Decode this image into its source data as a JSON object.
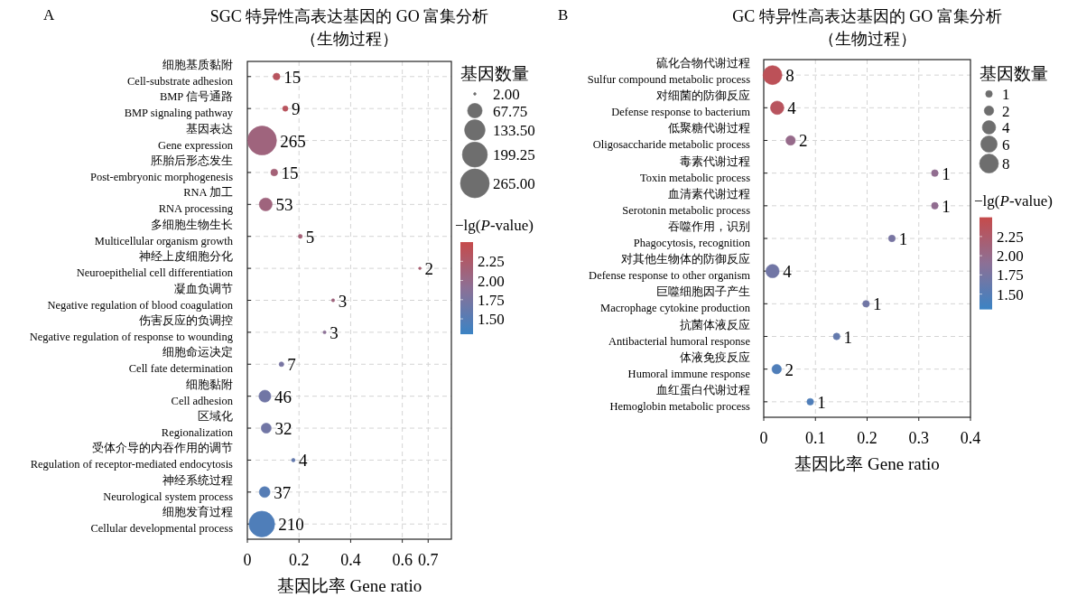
{
  "chart_data": [
    {
      "type": "bubble",
      "orientation": "horizontal",
      "title": "SGC 特异性高表达基因的 GO 富集分析",
      "subtitle": "（生物过程）",
      "annotations": [
        "A"
      ],
      "xlabel": "基因比率 Gene ratio",
      "legend_title": "基因数量",
      "clabel": "−lg($_{}$P-value)",
      "grid": true,
      "categories": [
        "细胞基质黏附\nCell-substrate adhesion",
        "BMP 信号通路\nBMP signaling pathway",
        "基因表达\nGene expression",
        "胚胎后形态发生\nPost-embryonic morphogenesis",
        "RNA 加工\nRNA processing",
        "多细胞生物生长\nMulticellular organism growth",
        "神经上皮细胞分化\nNeuroepithelial cell differentiation",
        "凝血负调节\nNegative regulation of blood coagulation",
        "伤害反应的负调控\nNegative regulation of response to wounding",
        "细胞命运决定\nCell fate determination",
        "细胞黏附\nCell adhesion",
        "区域化\nRegionalization",
        "受体介导的内吞作用的调节\nRegulation of receptor-mediated endocytosis",
        "神经系统过程\nNeurological system process",
        "细胞发育过程\nCellular developmental process"
      ],
      "values": [
        0.113,
        0.147,
        0.057,
        0.104,
        0.071,
        0.205,
        0.668,
        0.332,
        0.299,
        0.132,
        0.068,
        0.073,
        0.178,
        0.067,
        0.056
      ],
      "sizes": [
        15,
        9,
        265,
        15,
        53,
        5,
        2,
        3,
        3,
        7,
        46,
        32,
        4,
        37,
        210
      ],
      "cvalues": [
        2.35,
        2.35,
        2.1,
        2.15,
        2.1,
        2.15,
        2.2,
        2.1,
        1.9,
        1.75,
        1.7,
        1.7,
        1.6,
        1.5,
        1.45
      ],
      "value_labels": [
        "15",
        "9",
        "265",
        "15",
        "53",
        "5",
        "2",
        "3",
        "3",
        "7",
        "46",
        "32",
        "4",
        "37",
        "210"
      ],
      "xlim": [
        0,
        0.79
      ],
      "xticks": [
        0,
        0.2,
        0.4,
        0.6,
        0.7
      ],
      "size_legend": [
        {
          "value": 2,
          "label": "2.00"
        },
        {
          "value": 67.75,
          "label": "67.75"
        },
        {
          "value": 133.5,
          "label": "133.50"
        },
        {
          "value": 199.25,
          "label": "199.25"
        },
        {
          "value": 265,
          "label": "265.00"
        }
      ],
      "clim": [
        1.3,
        2.5
      ],
      "cticks": [
        {
          "value": 2.25,
          "label": "2.25"
        },
        {
          "value": 2,
          "label": "2.00"
        },
        {
          "value": 1.75,
          "label": "1.75"
        },
        {
          "value": 1.5,
          "label": "1.50"
        }
      ]
    },
    {
      "type": "bubble",
      "orientation": "horizontal",
      "title": "GC 特异性高表达基因的 GO 富集分析",
      "subtitle": "（生物过程）",
      "annotations": [
        "B"
      ],
      "xlabel": "基因比率 Gene ratio",
      "legend_title": "基因数量",
      "clabel": "−lg($_{}$P-value)",
      "grid": true,
      "categories": [
        "硫化合物代谢过程\nSulfur compound metabolic process",
        "对细菌的防御反应\nDefense response to bacterium",
        "低聚糖代谢过程\nOligosaccharide metabolic process",
        "毒素代谢过程\nToxin metabolic process",
        "血清素代谢过程\nSerotonin metabolic process",
        "吞噬作用，识别\nPhagocytosis, recognition",
        "对其他生物体的防御反应\nDefense response to other organism",
        "巨噬细胞因子产生\nMacrophage cytokine production",
        "抗菌体液反应\nAntibacterial humoral response",
        "体液免疫反应\nHumoral immune response",
        "血红蛋白代谢过程\nHemoglobin metabolic process"
      ],
      "values": [
        0.017,
        0.026,
        0.052,
        0.331,
        0.331,
        0.248,
        0.017,
        0.198,
        0.141,
        0.025,
        0.09
      ],
      "sizes": [
        8,
        4,
        2,
        1,
        1,
        1,
        4,
        1,
        1,
        2,
        1
      ],
      "cvalues": [
        2.4,
        2.35,
        2.0,
        1.95,
        1.95,
        1.75,
        1.7,
        1.7,
        1.6,
        1.45,
        1.45
      ],
      "value_labels": [
        "8",
        "4",
        "2",
        "1",
        "1",
        "1",
        "4",
        "1",
        "1",
        "2",
        "1"
      ],
      "xlim": [
        0,
        0.4
      ],
      "xticks": [
        0,
        0.1,
        0.2,
        0.3,
        0.4
      ],
      "size_legend": [
        {
          "value": 1,
          "label": "1"
        },
        {
          "value": 2,
          "label": "2"
        },
        {
          "value": 4,
          "label": "4"
        },
        {
          "value": 6,
          "label": "6"
        },
        {
          "value": 8,
          "label": "8"
        }
      ],
      "clim": [
        1.3,
        2.5
      ],
      "cticks": [
        {
          "value": 2.25,
          "label": "2.25"
        },
        {
          "value": 2,
          "label": "2.00"
        },
        {
          "value": 1.75,
          "label": "1.75"
        },
        {
          "value": 1.5,
          "label": "1.50"
        }
      ]
    }
  ]
}
